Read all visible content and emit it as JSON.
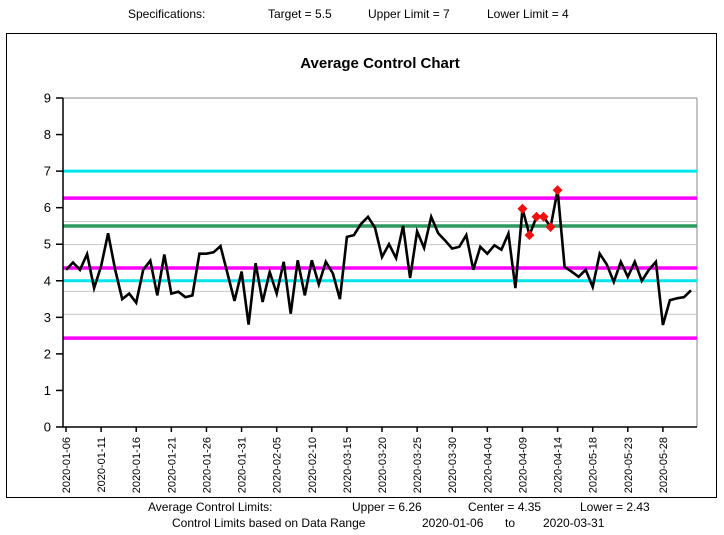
{
  "specifications": {
    "label": "Specifications:",
    "target": "Target = 5.5",
    "upper": "Upper Limit = 7",
    "lower": "Lower Limit = 4"
  },
  "footer": {
    "limits_label": "Average Control Limits:",
    "limits_upper": "Upper = 6.26",
    "limits_center": "Center = 4.35",
    "limits_lower": "Lower = 2.43",
    "range_label": "Control Limits based on Data Range",
    "range_start": "2020-01-06",
    "range_to": "to",
    "range_end": "2020-03-31"
  },
  "chart_data": {
    "type": "line",
    "title": "Average Control Chart",
    "ylim": [
      0,
      9
    ],
    "yticks": [
      0,
      1,
      2,
      3,
      4,
      5,
      6,
      7,
      8,
      9
    ],
    "x_tick_every": 5,
    "x_tick_labels": [
      "2020-01-06",
      "2020-01-11",
      "2020-01-16",
      "2020-01-21",
      "2020-01-26",
      "2020-01-31",
      "2020-02-05",
      "2020-02-10",
      "2020-03-15",
      "2020-03-20",
      "2020-03-25",
      "2020-03-30",
      "2020-04-04",
      "2020-04-09",
      "2020-04-14",
      "2020-05-18",
      "2020-05-23",
      "2020-05-28"
    ],
    "values": [
      4.3,
      4.5,
      4.3,
      4.73,
      3.8,
      4.4,
      5.3,
      4.3,
      3.5,
      3.65,
      3.4,
      4.3,
      4.55,
      3.6,
      4.72,
      3.65,
      3.7,
      3.55,
      3.6,
      4.74,
      4.74,
      4.78,
      4.95,
      4.2,
      3.45,
      4.25,
      2.8,
      4.48,
      3.42,
      4.24,
      3.65,
      4.52,
      3.1,
      4.56,
      3.6,
      4.56,
      3.9,
      4.52,
      4.2,
      3.5,
      5.2,
      5.25,
      5.55,
      5.75,
      5.45,
      4.65,
      5.0,
      4.62,
      5.5,
      4.08,
      5.35,
      4.9,
      5.75,
      5.3,
      5.1,
      4.88,
      4.93,
      5.25,
      4.3,
      4.93,
      4.74,
      4.97,
      4.85,
      5.29,
      3.8,
      5.97,
      5.25,
      5.75,
      5.75,
      5.47,
      6.48,
      4.38,
      4.25,
      4.11,
      4.3,
      3.83,
      4.74,
      4.45,
      3.97,
      4.52,
      4.11,
      4.52,
      4.0,
      4.3,
      4.52,
      2.79,
      3.47,
      3.52,
      3.55,
      3.74
    ],
    "out_of_control_indices": [
      65,
      66,
      67,
      68,
      69,
      70
    ],
    "series_color": "#000000",
    "marker_color": "#ee1111",
    "reference_lines": [
      {
        "name": "zone-plus-2sigma",
        "value": 5.62,
        "color": "#c8c8c8",
        "width": 1
      },
      {
        "name": "zone-plus-1sigma",
        "value": 4.99,
        "color": "#c8c8c8",
        "width": 1
      },
      {
        "name": "zone-minus-1sigma",
        "value": 3.71,
        "color": "#c8c8c8",
        "width": 1
      },
      {
        "name": "zone-minus-2sigma",
        "value": 3.08,
        "color": "#c8c8c8",
        "width": 1
      },
      {
        "name": "upper-spec-limit",
        "value": 7,
        "color": "#00e5ee",
        "width": 3
      },
      {
        "name": "lower-spec-limit",
        "value": 4,
        "color": "#00e5ee",
        "width": 3
      },
      {
        "name": "upper-control-limit",
        "value": 6.26,
        "color": "#ff00ff",
        "width": 3.5
      },
      {
        "name": "center-line",
        "value": 4.35,
        "color": "#ff00ff",
        "width": 3.5
      },
      {
        "name": "lower-control-limit",
        "value": 2.43,
        "color": "#ff00ff",
        "width": 3.5
      },
      {
        "name": "target-line",
        "value": 5.5,
        "color": "#2e9960",
        "width": 3.5
      }
    ],
    "frame_color": "#888888",
    "axis_color": "#000000"
  }
}
